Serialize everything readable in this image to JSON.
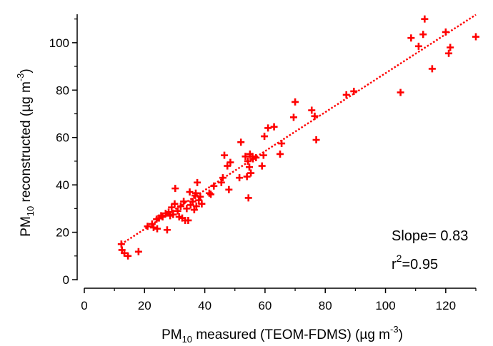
{
  "chart_data": {
    "type": "scatter",
    "xlabel": {
      "pre": "PM",
      "sub": "10",
      "mid": " measured (TEOM-FDMS) (µg m",
      "sup": "-3",
      "post": ")"
    },
    "ylabel": {
      "pre": "PM",
      "sub": "10",
      "mid": " reconstructed (µg m",
      "sup": "-3",
      "post": ")"
    },
    "xlim": [
      0,
      130
    ],
    "ylim": [
      0,
      112
    ],
    "xticks": [
      "0",
      "20",
      "40",
      "60",
      "80",
      "100",
      "120"
    ],
    "yticks": [
      "0",
      "20",
      "40",
      "60",
      "80",
      "100"
    ],
    "grid": false,
    "marker": "+",
    "color": "#ff0000",
    "fit_line": {
      "style": "dotted",
      "x": [
        12.3,
        130
      ],
      "y": [
        15.0,
        111.8
      ]
    },
    "annotations": {
      "slope": "Slope= 0.83",
      "r2_base": "r",
      "r2_sup": "2",
      "r2_value": "=0.95"
    },
    "points": [
      [
        12.3,
        15.0
      ],
      [
        12.5,
        12.5
      ],
      [
        13.3,
        11.2
      ],
      [
        14.5,
        10.0
      ],
      [
        18.0,
        11.8
      ],
      [
        21.0,
        22.5
      ],
      [
        22.5,
        23.5
      ],
      [
        23.0,
        22.0
      ],
      [
        24.2,
        21.5
      ],
      [
        24.0,
        25.5
      ],
      [
        24.8,
        26.0
      ],
      [
        25.5,
        27.0
      ],
      [
        26.0,
        26.5
      ],
      [
        27.0,
        28.0
      ],
      [
        27.5,
        21.0
      ],
      [
        28.0,
        28.5
      ],
      [
        28.5,
        27.0
      ],
      [
        29.0,
        30.5
      ],
      [
        29.5,
        27.5
      ],
      [
        30.0,
        32.0
      ],
      [
        30.2,
        38.5
      ],
      [
        31.0,
        29.0
      ],
      [
        31.5,
        26.5
      ],
      [
        32.0,
        31.0
      ],
      [
        32.5,
        26.0
      ],
      [
        33.0,
        33.0
      ],
      [
        33.5,
        25.0
      ],
      [
        34.0,
        30.0
      ],
      [
        34.5,
        25.0
      ],
      [
        35.0,
        37.0
      ],
      [
        35.3,
        31.5
      ],
      [
        36.0,
        33.0
      ],
      [
        36.5,
        29.5
      ],
      [
        36.8,
        35.5
      ],
      [
        37.0,
        36.5
      ],
      [
        37.2,
        31.0
      ],
      [
        37.5,
        41.0
      ],
      [
        38.0,
        33.5
      ],
      [
        38.5,
        35.0
      ],
      [
        39.0,
        32.0
      ],
      [
        41.5,
        36.5
      ],
      [
        42.0,
        36.0
      ],
      [
        43.0,
        39.5
      ],
      [
        45.5,
        41.0
      ],
      [
        46.0,
        43.0
      ],
      [
        46.5,
        52.5
      ],
      [
        47.5,
        48.0
      ],
      [
        48.0,
        38.0
      ],
      [
        48.5,
        49.5
      ],
      [
        51.5,
        43.0
      ],
      [
        52.0,
        58.0
      ],
      [
        53.5,
        52.0
      ],
      [
        54.0,
        43.5
      ],
      [
        54.3,
        50.0
      ],
      [
        54.5,
        34.5
      ],
      [
        54.8,
        47.5
      ],
      [
        55.0,
        53.0
      ],
      [
        55.3,
        45.0
      ],
      [
        55.8,
        52.0
      ],
      [
        56.0,
        51.0
      ],
      [
        57.0,
        51.5
      ],
      [
        59.0,
        48.0
      ],
      [
        59.5,
        52.5
      ],
      [
        59.8,
        60.5
      ],
      [
        61.0,
        64.0
      ],
      [
        63.0,
        64.5
      ],
      [
        65.0,
        53.0
      ],
      [
        65.5,
        57.5
      ],
      [
        69.5,
        68.5
      ],
      [
        70.0,
        75.0
      ],
      [
        75.5,
        71.5
      ],
      [
        76.5,
        69.0
      ],
      [
        77.0,
        59.0
      ],
      [
        87.0,
        78.0
      ],
      [
        89.5,
        79.5
      ],
      [
        105.0,
        79.0
      ],
      [
        108.5,
        102.0
      ],
      [
        111.0,
        98.5
      ],
      [
        112.5,
        103.5
      ],
      [
        113.0,
        110.0
      ],
      [
        115.5,
        89.0
      ],
      [
        120.0,
        104.5
      ],
      [
        121.0,
        95.5
      ],
      [
        121.5,
        98.0
      ],
      [
        130.0,
        102.5
      ]
    ]
  }
}
